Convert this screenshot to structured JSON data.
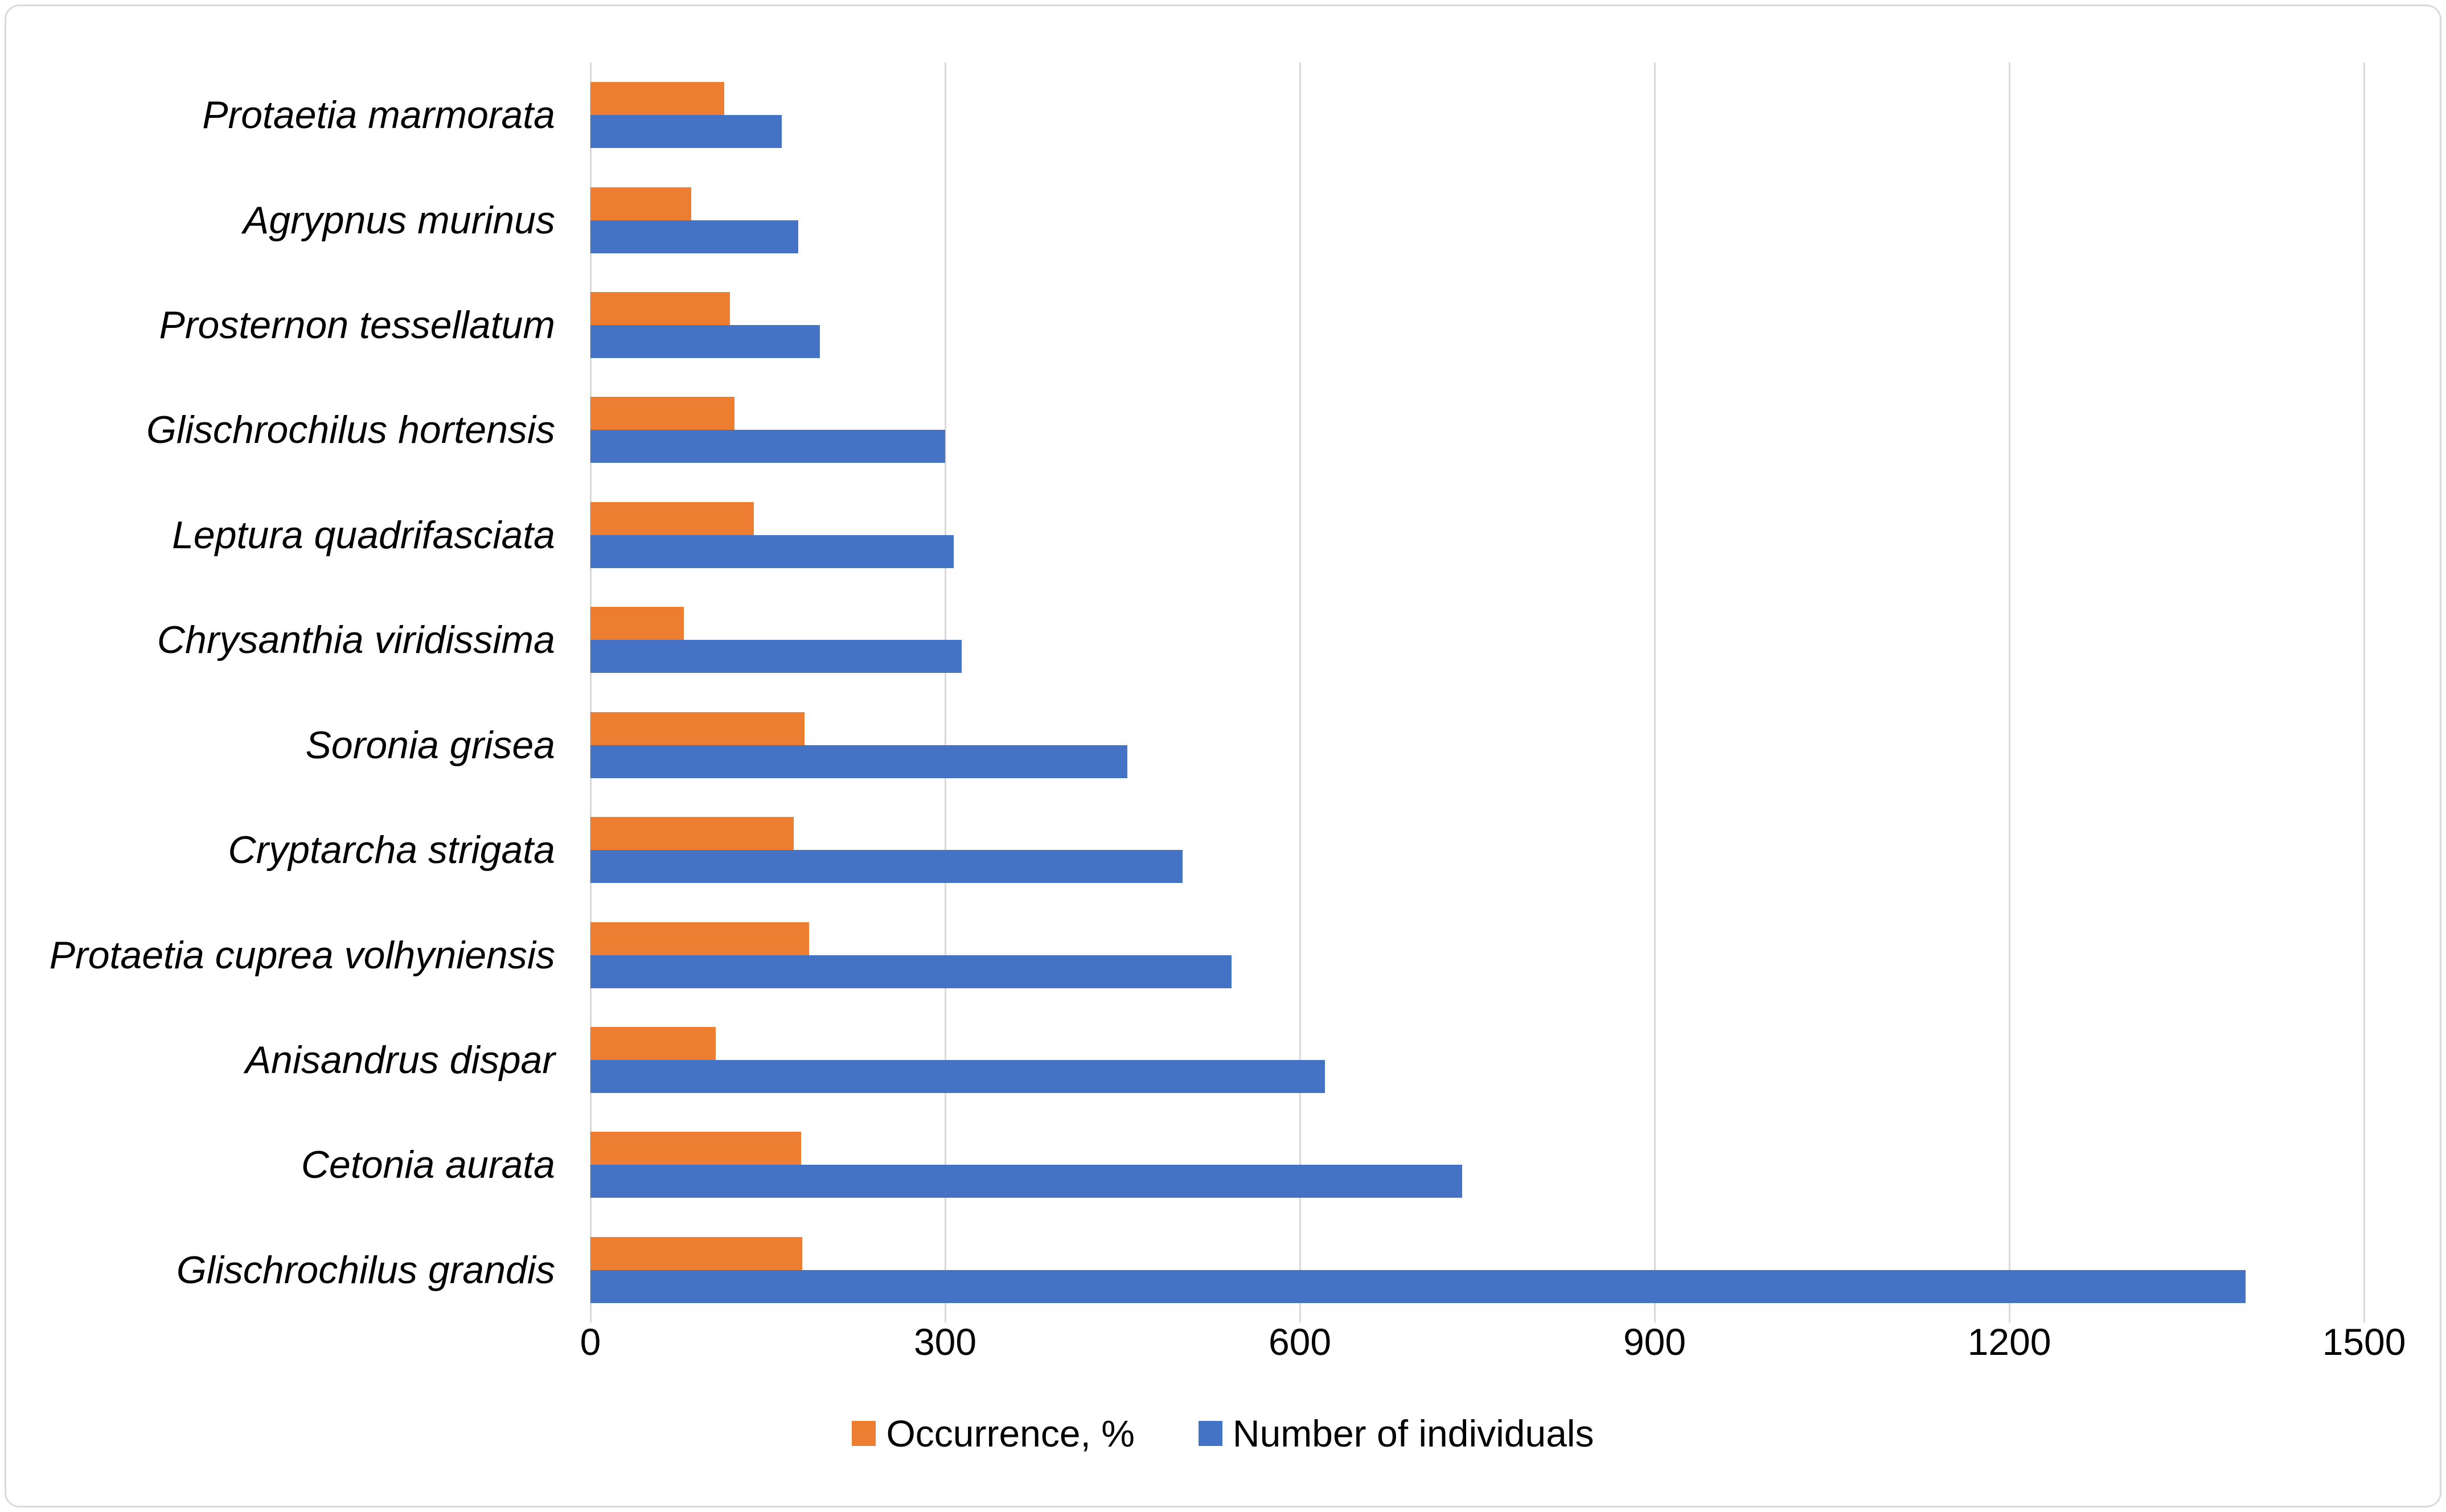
{
  "figure": {
    "background": "#FFFFFF",
    "border_color": "#D9D9D9"
  },
  "axis": {
    "tick_labels": [
      "0",
      "300",
      "600",
      "900",
      "1200",
      "1500"
    ],
    "gridline_color": "#D9D9D9",
    "text_color": "#000000"
  },
  "legend": {
    "items": [
      {
        "label": "Occurrence, %",
        "color": "#ED7D31"
      },
      {
        "label": "Number of individuals",
        "color": "#4472C4"
      }
    ]
  },
  "chart_data": {
    "type": "bar",
    "orientation": "horizontal",
    "title": "",
    "xlabel": "",
    "ylabel": "",
    "xlim": [
      0,
      1500
    ],
    "x_ticks": [
      0,
      300,
      600,
      900,
      1200,
      1500
    ],
    "grid": true,
    "legend_position": "bottom",
    "categories": [
      "Protaetia marmorata",
      "Agrypnus murinus",
      "Prosternon tessellatum",
      "Glischrochilus hortensis",
      "Leptura quadrifasciata",
      "Chrysanthia viridissima",
      "Soronia grisea",
      "Cryptarcha strigata",
      "Protaetia cuprea volhyniensis",
      "Anisandrus dispar",
      "Cetonia aurata",
      "Glischrochilus grandis"
    ],
    "series": [
      {
        "name": "Occurrence, %",
        "color": "#ED7D31",
        "values": [
          113,
          85,
          118,
          122,
          138,
          79,
          181,
          172,
          185,
          106,
          178,
          179
        ]
      },
      {
        "name": "Number of individuals",
        "color": "#4472C4",
        "values": [
          162,
          176,
          194,
          300,
          307,
          314,
          454,
          501,
          542,
          621,
          737,
          1400
        ]
      }
    ]
  }
}
